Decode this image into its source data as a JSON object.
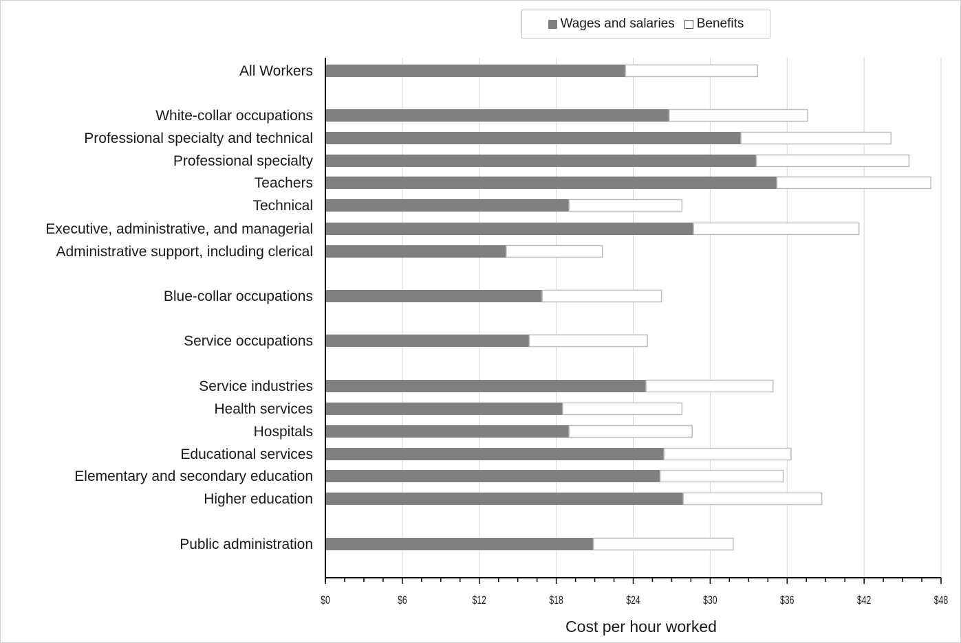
{
  "chart_data": {
    "type": "bar",
    "orientation": "horizontal",
    "stacked": true,
    "categories": [
      "All Workers",
      "White-collar occupations",
      "Professional specialty and technical",
      "Professional specialty",
      "Teachers",
      "Technical",
      "Executive, administrative, and managerial",
      "Administrative support, including clerical",
      "Blue-collar occupations",
      "Service occupations",
      "Service industries",
      "Health services",
      "Hospitals",
      "Educational services",
      "Elementary and secondary  education",
      "Higher education",
      "Public administration"
    ],
    "series": [
      {
        "name": "Wages and salaries",
        "color": "#808080",
        "values": [
          23.4,
          26.8,
          32.4,
          33.6,
          35.2,
          19.0,
          28.7,
          14.1,
          16.9,
          15.9,
          25.0,
          18.5,
          19.0,
          26.4,
          26.1,
          27.9,
          20.9
        ]
      },
      {
        "name": "Benefits",
        "color": "#ffffff",
        "values": [
          10.3,
          10.8,
          11.7,
          11.9,
          12.0,
          8.8,
          12.9,
          7.5,
          9.3,
          9.2,
          9.9,
          9.3,
          9.6,
          9.9,
          9.6,
          10.8,
          10.9
        ]
      }
    ],
    "xlabel": "Cost per hour worked",
    "xlim": [
      0,
      48
    ],
    "xticks": [
      "$0",
      "$6",
      "$12",
      "$18",
      "$24",
      "$30",
      "$36",
      "$42",
      "$48"
    ],
    "grid": true,
    "legend": "top-center"
  }
}
